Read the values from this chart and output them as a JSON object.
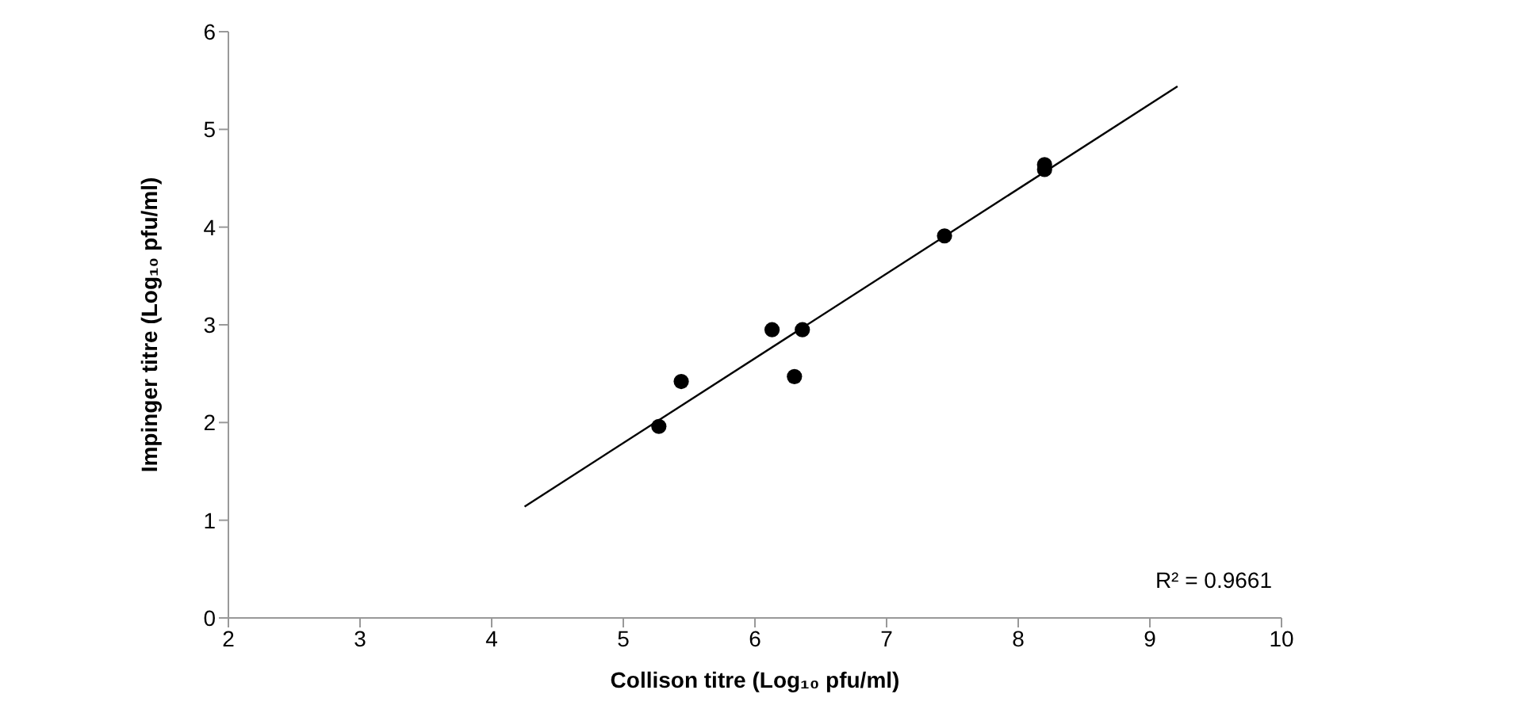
{
  "chart_data": {
    "type": "scatter",
    "xlabel": "Collison titre (Log₁₀ pfu/ml)",
    "ylabel": "Impinger titre (Log₁₀ pfu/ml)",
    "x": [
      5.27,
      5.44,
      6.13,
      6.36,
      6.3,
      7.44,
      8.2,
      8.2
    ],
    "series": [
      {
        "color": "#000000",
        "marker": "circle",
        "values": [
          1.96,
          2.42,
          2.95,
          2.95,
          2.47,
          3.91,
          4.64,
          4.59
        ]
      },
      {
        "type": "line",
        "color": "#000000",
        "marker": "none",
        "x": [
          4.25,
          9.21
        ],
        "values": [
          1.14,
          5.44
        ]
      }
    ],
    "xlim": [
      2,
      10
    ],
    "xticks": [
      2,
      3,
      4,
      5,
      6,
      7,
      8,
      9,
      10
    ],
    "ylim": [
      0,
      6
    ],
    "yticks": [
      0,
      1,
      2,
      3,
      4,
      5,
      6
    ],
    "annotations": [
      "R² = 0.9661"
    ],
    "grid": false,
    "legend": false
  }
}
